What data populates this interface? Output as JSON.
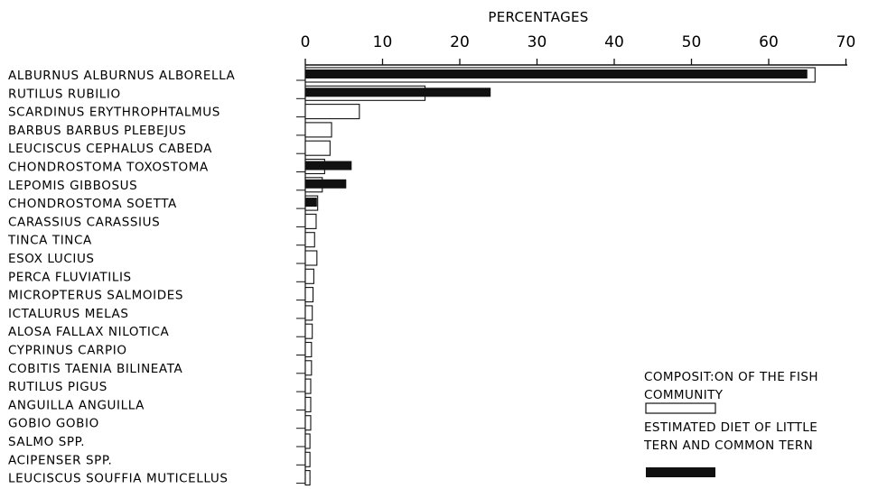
{
  "chart_data": {
    "type": "bar",
    "title": "",
    "xlabel": "PERCENTAGES",
    "ylabel": "",
    "xlim": [
      0,
      70
    ],
    "x_ticks": [
      "0",
      "10",
      "20",
      "30",
      "40",
      "50",
      "60",
      "70"
    ],
    "orientation": "horizontal",
    "categories": [
      "ALBURNUS ALBURNUS ALBORELLA",
      "RUTILUS RUBILIO",
      "SCARDINUS ERYTHROPHTALMUS",
      "BARBUS BARBUS PLEBEJUS",
      "LEUCISCUS CEPHALUS CABEDA",
      "CHONDROSTOMA TOXOSTOMA",
      "LEPOMIS GIBBOSUS",
      "CHONDROSTOMA SOETTA",
      "CARASSIUS CARASSIUS",
      "TINCA TINCA",
      "ESOX LUCIUS",
      "PERCA FLUVIATILIS",
      "MICROPTERUS SALMOIDES",
      "ICTALURUS MELAS",
      "ALOSA FALLAX NILOTICA",
      "CYPRINUS CARPIO",
      "COBITIS TAENIA BILINEATA",
      "RUTILUS PIGUS",
      "ANGUILLA ANGUILLA",
      "GOBIO GOBIO",
      "SALMO SPP.",
      "ACIPENSER SPP.",
      "LEUCISCUS SOUFFIA MUTICELLUS"
    ],
    "series": [
      {
        "name": "COMPOSIT:ON OF THE FISH COMMUNITY",
        "color": "#ffffff",
        "values": [
          66,
          15.5,
          7,
          3.4,
          3.2,
          2.5,
          2.2,
          1.6,
          1.4,
          1.2,
          1.5,
          1.1,
          1.0,
          0.9,
          0.9,
          0.8,
          0.8,
          0.7,
          0.7,
          0.7,
          0.6,
          0.6,
          0.6
        ]
      },
      {
        "name": "ESTIMATED DIET OF LITTLE TERN AND COMMON TERN",
        "color": "#111111",
        "values": [
          65,
          24,
          0,
          0,
          0,
          6,
          5.3,
          1.5,
          0,
          0,
          0,
          0,
          0,
          0,
          0,
          0,
          0,
          0,
          0,
          0,
          0,
          0,
          0
        ]
      }
    ],
    "grid": false,
    "legend": {
      "position": "bottom-right",
      "entries": [
        {
          "label_lines": [
            "COMPOSIT:ON OF THE FISH",
            "COMMUNITY"
          ],
          "style": "outline"
        },
        {
          "label_lines": [
            "ESTIMATED DIET OF LITTLE",
            "TERN AND COMMON TERN"
          ],
          "style": "filled"
        }
      ]
    }
  }
}
